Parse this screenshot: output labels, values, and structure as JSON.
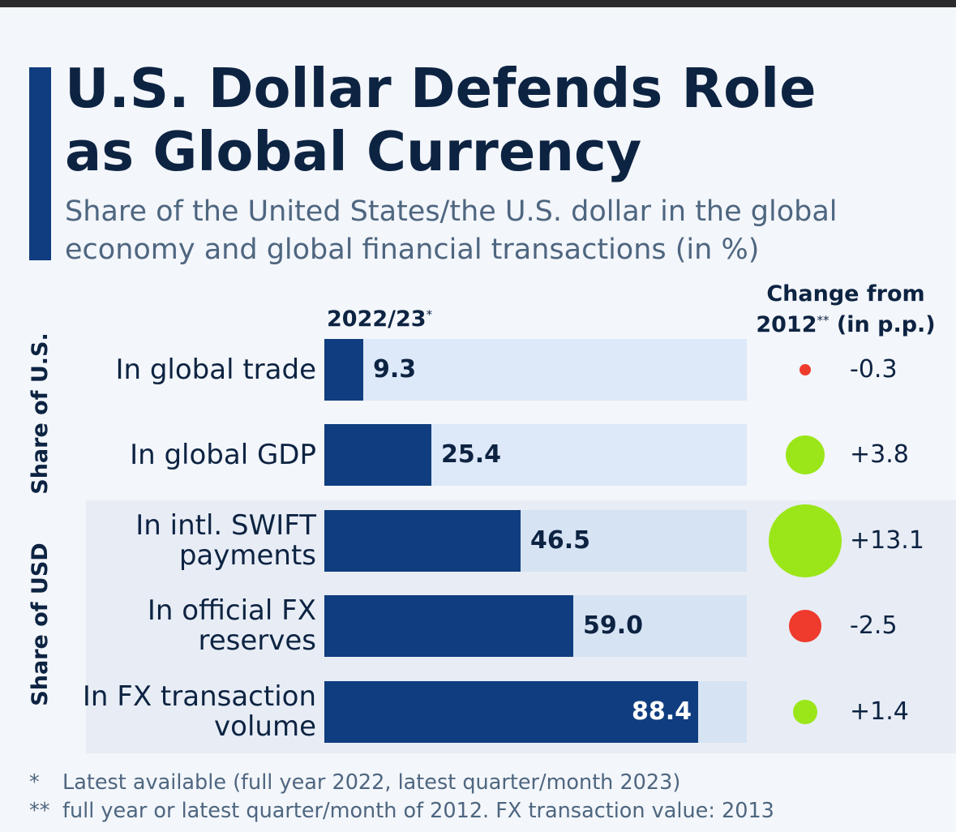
{
  "title": "U.S. Dollar Defends Role as Global Currency",
  "title_lines": [
    "U.S. Dollar Defends Role",
    "as Global Currency"
  ],
  "subtitle_lines": [
    "Share of the United States/the U.S. dollar in the global",
    "economy and global financial transactions (in %)"
  ],
  "colors": {
    "bar": "#0f3d7f",
    "track_us": "#dde8f8",
    "track_usd": "#d6e3f3",
    "positive": "#9be619",
    "negative": "#ee3b2d",
    "title": "#0d2342",
    "subtitle": "#4e6680"
  },
  "chart_data": {
    "type": "bar",
    "orientation": "horizontal",
    "title": "U.S. Dollar Defends Role as Global Currency",
    "subtitle": "Share of the United States/the U.S. dollar in the global economy and global financial transactions (in %)",
    "year_header": "2022/23",
    "year_header_mark": "*",
    "change_header_lines": [
      "Change from",
      "2012"
    ],
    "change_header_mark": "**",
    "change_header_unit": " (in p.p.)",
    "xlim": [
      0,
      100
    ],
    "groups": [
      {
        "name": "Share of U.S.",
        "rows": [
          0,
          1
        ]
      },
      {
        "name": "Share of USD",
        "rows": [
          2,
          3,
          4
        ]
      }
    ],
    "categories": [
      [
        "In global trade"
      ],
      [
        "In global GDP"
      ],
      [
        "In intl. SWIFT",
        "payments"
      ],
      [
        "In official FX",
        "reserves"
      ],
      [
        "In FX transaction",
        "volume"
      ]
    ],
    "values": [
      9.3,
      25.4,
      46.5,
      59.0,
      88.4
    ],
    "value_labels": [
      "9.3",
      "25.4",
      "46.5",
      "59.0",
      "88.4"
    ],
    "changes": [
      -0.3,
      3.8,
      13.1,
      -2.5,
      1.4
    ],
    "change_labels": [
      "-0.3",
      "+3.8",
      "+13.1",
      "-2.5",
      "+1.4"
    ]
  },
  "footnotes": [
    {
      "mark": "*",
      "text": "Latest available (full year 2022, latest quarter/month 2023)"
    },
    {
      "mark": "**",
      "text": "full year or latest quarter/month of 2012. FX transaction value: 2013"
    }
  ]
}
